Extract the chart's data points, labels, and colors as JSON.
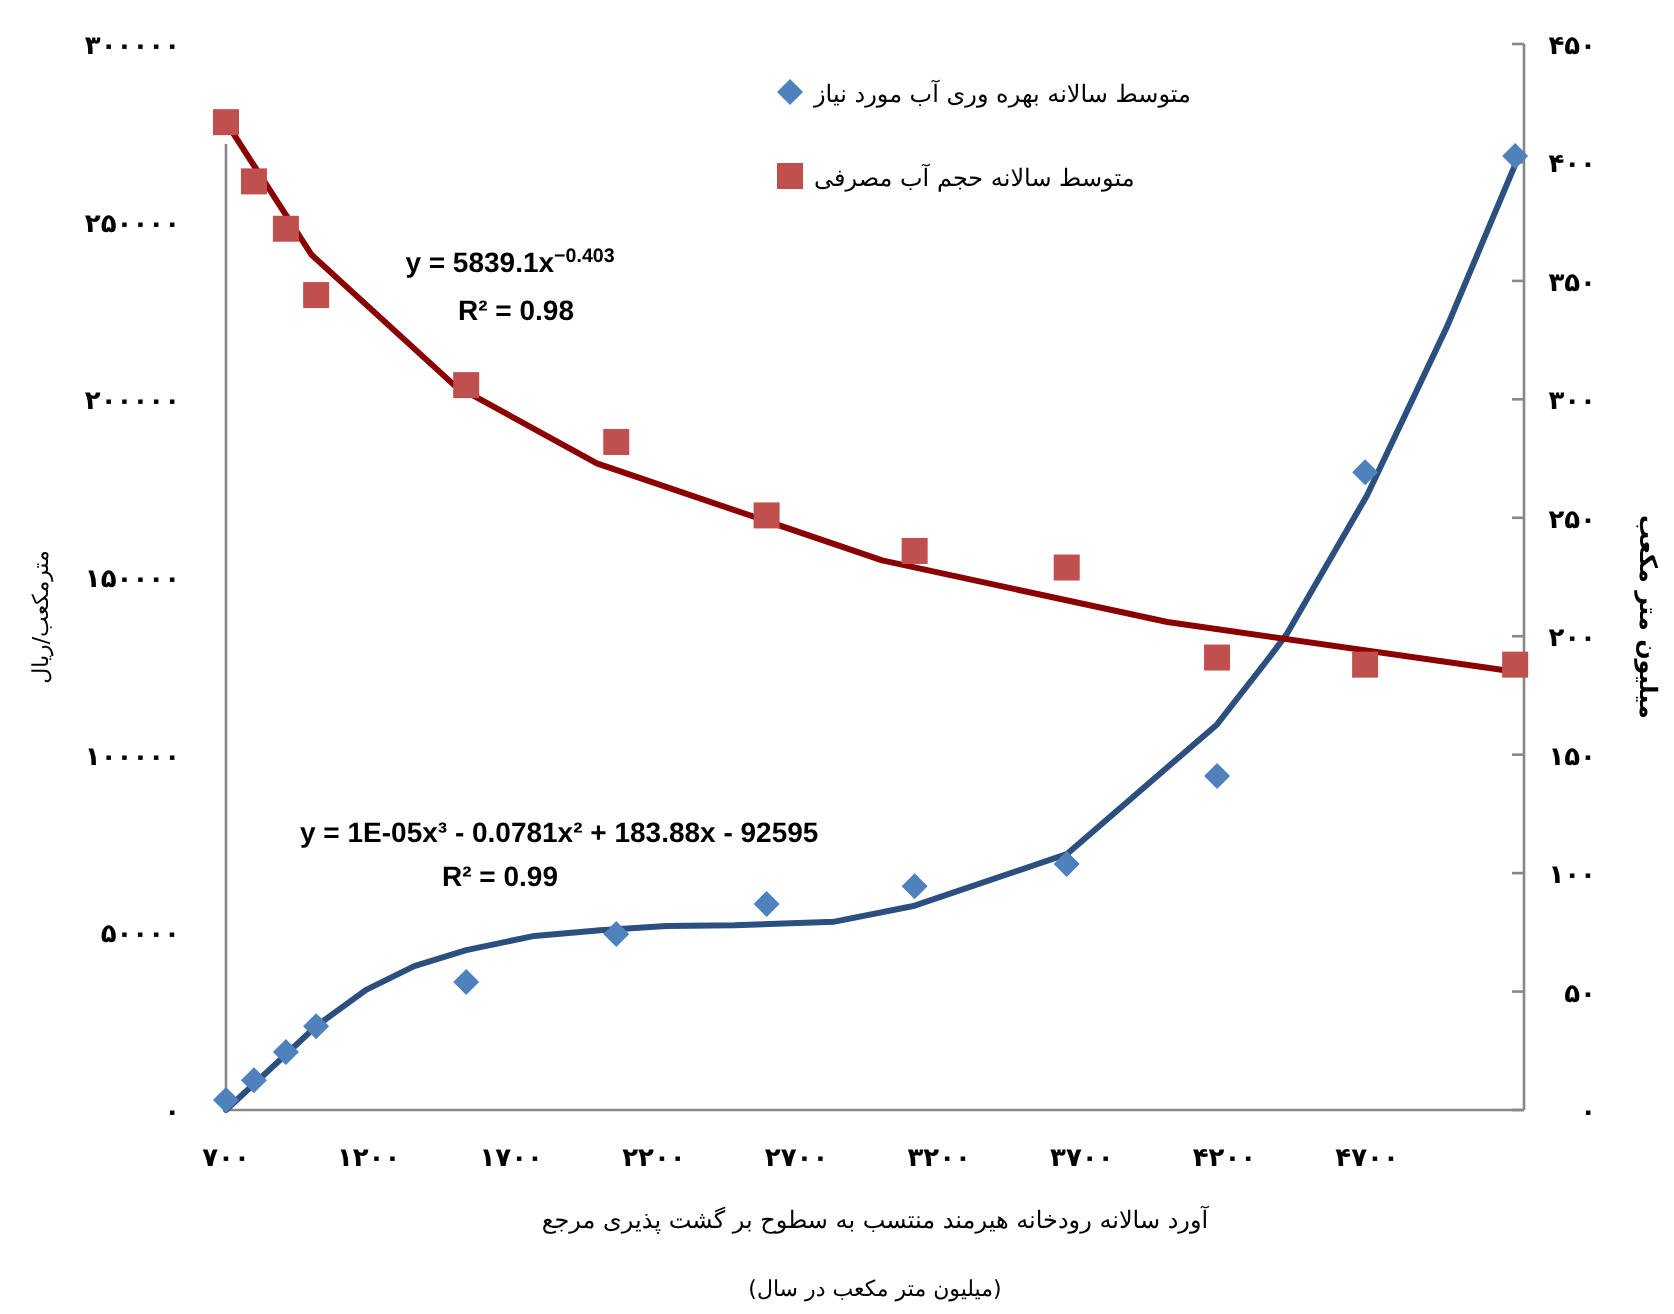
{
  "chart_data": {
    "type": "scatter",
    "xlabel": "آورد سالانه رودخانه هیرمند منتسب به سطوح بر گشت پذیری مرجع\n(میلیون متر مکعب در سال)",
    "ylabel": "مترمکعب/ریال",
    "y2label": "میلیون متر مکعب",
    "xlim": [
      700,
      5250
    ],
    "xticks": [
      {
        "value": 700,
        "label": "۷۰۰"
      },
      {
        "value": 1200,
        "label": "۱۲۰۰"
      },
      {
        "value": 1700,
        "label": "۱۷۰۰"
      },
      {
        "value": 2200,
        "label": "۲۲۰۰"
      },
      {
        "value": 2700,
        "label": "۲۷۰۰"
      },
      {
        "value": 3200,
        "label": "۳۲۰۰"
      },
      {
        "value": 3700,
        "label": "۳۷۰۰"
      },
      {
        "value": 4200,
        "label": "۴۲۰۰"
      },
      {
        "value": 4700,
        "label": "۴۷۰۰"
      }
    ],
    "ylim": [
      0,
      300000
    ],
    "yticks": [
      {
        "value": 0,
        "label": "۰"
      },
      {
        "value": 50000,
        "label": "۵۰۰۰۰"
      },
      {
        "value": 100000,
        "label": "۱۰۰۰۰۰"
      },
      {
        "value": 150000,
        "label": "۱۵۰۰۰۰"
      },
      {
        "value": 200000,
        "label": "۲۰۰۰۰۰"
      },
      {
        "value": 250000,
        "label": "۲۵۰۰۰۰"
      },
      {
        "value": 300000,
        "label": "۳۰۰۰۰۰"
      }
    ],
    "y2lim": [
      0,
      450
    ],
    "y2ticks": [
      {
        "value": 0,
        "label": "۰"
      },
      {
        "value": 50,
        "label": "۵۰"
      },
      {
        "value": 100,
        "label": "۱۰۰"
      },
      {
        "value": 150,
        "label": "۱۵۰"
      },
      {
        "value": 200,
        "label": "۲۰۰"
      },
      {
        "value": 250,
        "label": "۲۵۰"
      },
      {
        "value": 300,
        "label": "۳۰۰"
      },
      {
        "value": 350,
        "label": "۳۵۰"
      },
      {
        "value": 400,
        "label": "۴۰۰"
      },
      {
        "value": 450,
        "label": "۴۵۰"
      }
    ],
    "legend": "top",
    "series": [
      {
        "type": "line",
        "color": "#2b4f7e",
        "line_style": "solid",
        "axis": "y",
        "x": [
          700,
          798,
          911,
          1016,
          1191,
          1360,
          1542,
          1781,
          2012,
          2244,
          2482,
          2833,
          3114,
          3647,
          4174,
          4349,
          4419,
          4700,
          4981,
          5226
        ],
        "values": [
          0,
          7300,
          15700,
          23600,
          33800,
          40500,
          45000,
          49000,
          50600,
          51800,
          52000,
          53000,
          57500,
          72000,
          108500,
          126500,
          134000,
          173000,
          220600,
          267400
        ]
      },
      {
        "type": "line",
        "color": "#8b0000",
        "line_style": "solid",
        "axis": "y2",
        "x": [
          700,
          1000,
          1500,
          2000,
          3000,
          4000,
          5220
        ],
        "values": [
          417,
          361,
          306,
          273,
          232,
          206,
          185
        ]
      },
      {
        "name": "متوسط سالانه بهره وری آب مورد نیاز",
        "color": "#4f81bd",
        "marker": "diamond",
        "axis": "y",
        "x": [
          700,
          798,
          910,
          1016,
          1542,
          2068,
          2595,
          3114,
          3647,
          4174,
          4693,
          5219
        ],
        "values": [
          2800,
          8400,
          16300,
          23600,
          36000,
          49500,
          58000,
          63000,
          69200,
          94000,
          179500,
          268500
        ]
      },
      {
        "name": "متوسط سالانه حجم آب مصرفی",
        "color": "#c0504d",
        "marker": "square",
        "axis": "y2",
        "x": [
          700,
          798,
          910,
          1016,
          1542,
          2068,
          2595,
          3114,
          3647,
          4174,
          4693,
          5219
        ],
        "values": [
          417,
          392,
          372,
          344,
          306,
          282,
          251,
          236,
          229,
          191,
          188,
          188
        ]
      }
    ],
    "annotations": [
      "y = 5839.1x$^{−0.403}$",
      "R² = 0.98",
      "y = 1E-05x³ - 0.0781x² + 183.88x - 92595",
      "R² = 0.99"
    ]
  }
}
